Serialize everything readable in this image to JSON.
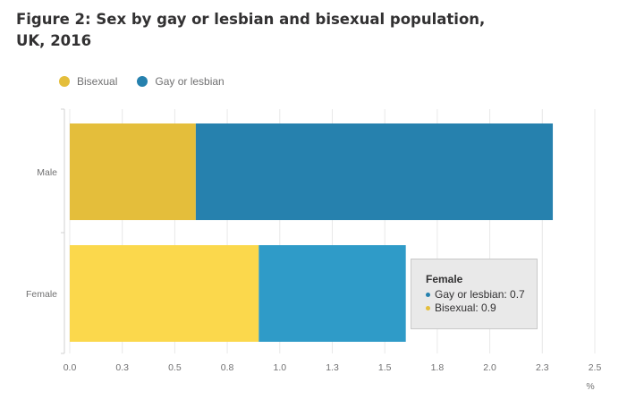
{
  "chart_data": {
    "type": "bar",
    "orientation": "horizontal",
    "stacked": true,
    "title": "Figure 2: Sex by gay or lesbian and bisexual population, UK, 2016",
    "categories": [
      "Male",
      "Female"
    ],
    "series": [
      {
        "name": "Bisexual",
        "values": [
          0.6,
          0.9
        ],
        "colors": [
          "#e4be3b",
          "#fbd84c"
        ]
      },
      {
        "name": "Gay or lesbian",
        "values": [
          1.7,
          0.7
        ],
        "colors": [
          "#2681ae",
          "#2f9bc8"
        ]
      }
    ],
    "xlabel": "",
    "unit_label": "%",
    "xlim": [
      0,
      2.5
    ],
    "xticks": [
      0,
      0.25,
      0.5,
      0.75,
      1.0,
      1.25,
      1.5,
      1.75,
      2.0,
      2.25,
      2.5
    ],
    "xtick_labels": [
      "0.0",
      "0.3",
      "0.5",
      "0.8",
      "1.0",
      "1.3",
      "1.5",
      "1.8",
      "2.0",
      "2.3",
      "2.5"
    ],
    "grid": true,
    "legend_position": "top-left",
    "tooltip": {
      "title": "Female",
      "rows": [
        {
          "label": "Gay or lesbian: 0.7",
          "color": "#2681ae"
        },
        {
          "label": "Bisexual: 0.9",
          "color": "#e4be3b"
        }
      ]
    }
  }
}
